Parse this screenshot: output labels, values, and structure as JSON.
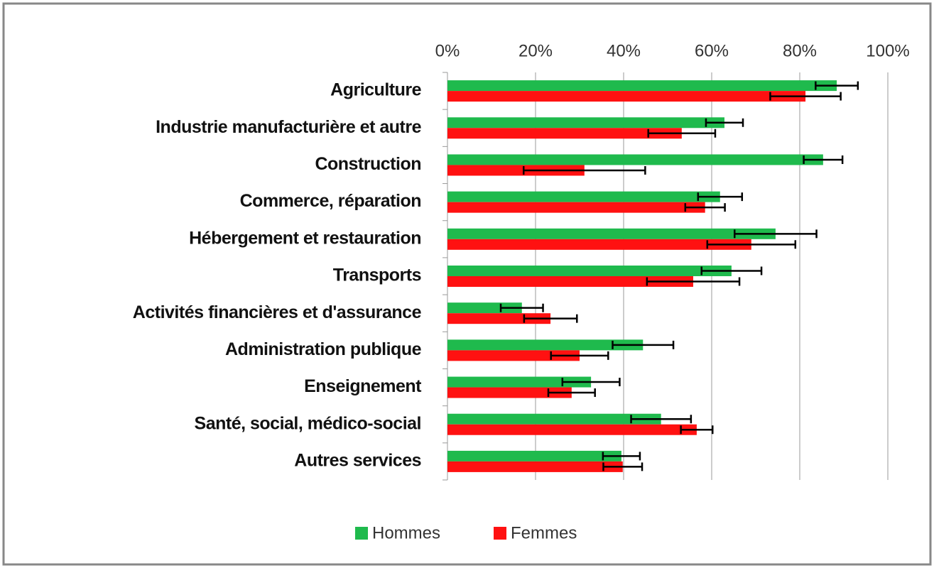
{
  "chart_data": {
    "type": "bar",
    "orientation": "horizontal",
    "categories": [
      "Agriculture",
      "Industrie manufacturière et autre",
      "Construction",
      "Commerce, réparation",
      "Hébergement et restauration",
      "Transports",
      "Activités financières et d'assurance",
      "Administration publique",
      "Enseignement",
      "Santé, social, médico-social",
      "Autres services"
    ],
    "series": [
      {
        "name": "Hommes",
        "color": "#1fba4d",
        "values": [
          88.4,
          62.9,
          85.3,
          61.9,
          74.5,
          64.5,
          16.9,
          44.4,
          32.6,
          48.5,
          39.5
        ],
        "errors": [
          4.8,
          4.2,
          4.4,
          5,
          9.3,
          6.8,
          4.8,
          6.9,
          6.5,
          6.8,
          4.2
        ]
      },
      {
        "name": "Femmes",
        "color": "#ff1111",
        "values": [
          81.3,
          53.2,
          31.1,
          58.5,
          69.0,
          55.8,
          23.4,
          30.0,
          28.2,
          56.6,
          39.8
        ],
        "errors": [
          8,
          7.6,
          13.8,
          4.5,
          10,
          10.5,
          6,
          6.5,
          5.3,
          3.6,
          4.4
        ]
      }
    ],
    "xlim": [
      0,
      100
    ],
    "xticks": [
      {
        "value": 0,
        "label": "0%"
      },
      {
        "value": 20,
        "label": "20%"
      },
      {
        "value": 40,
        "label": "40%"
      },
      {
        "value": 60,
        "label": "60%"
      },
      {
        "value": 80,
        "label": "80%"
      },
      {
        "value": 100,
        "label": "100%"
      }
    ],
    "grid": true,
    "legend": "bottom"
  }
}
